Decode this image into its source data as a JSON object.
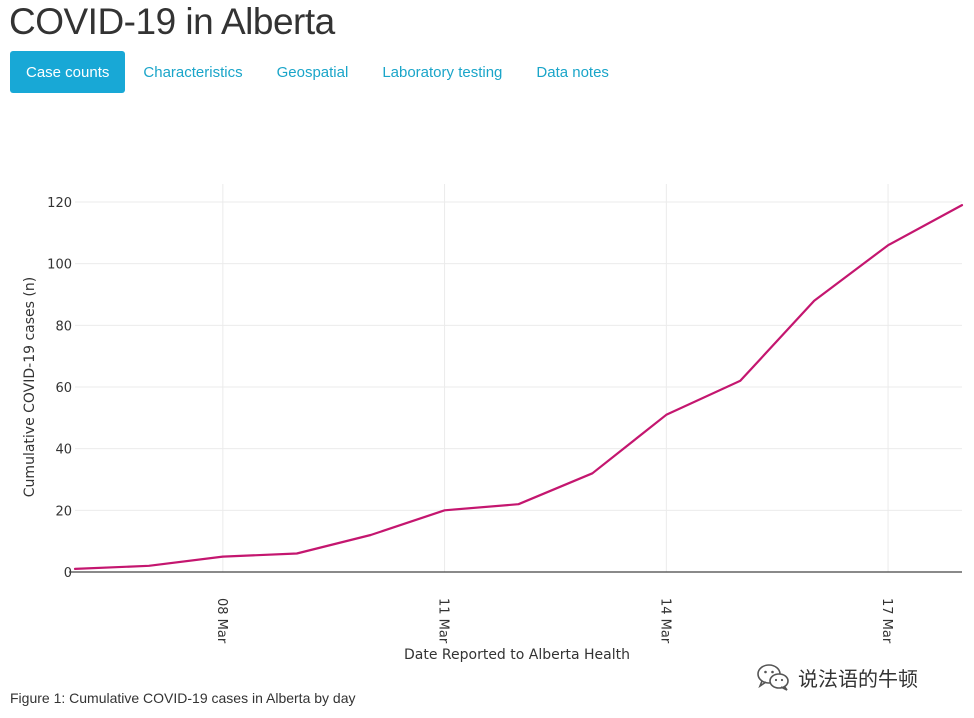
{
  "page": {
    "title": "COVID-19 in Alberta"
  },
  "tabs": [
    {
      "label": "Case counts",
      "active": true
    },
    {
      "label": "Characteristics",
      "active": false
    },
    {
      "label": "Geospatial",
      "active": false
    },
    {
      "label": "Laboratory testing",
      "active": false
    },
    {
      "label": "Data notes",
      "active": false
    }
  ],
  "colors": {
    "accent": "#18a8d6",
    "line": "#c4166f"
  },
  "caption": "Figure 1: Cumulative COVID-19 cases in Alberta by day",
  "watermark": {
    "text": "说法语的牛顿",
    "icon": "wechat-icon"
  },
  "chart_data": {
    "type": "line",
    "xlabel": "Date Reported to Alberta Health",
    "ylabel": "Cumulative COVID-19 cases (n)",
    "x": [
      "2020-03-06",
      "2020-03-07",
      "2020-03-08",
      "2020-03-09",
      "2020-03-10",
      "2020-03-11",
      "2020-03-12",
      "2020-03-13",
      "2020-03-14",
      "2020-03-15",
      "2020-03-16",
      "2020-03-17",
      "2020-03-18"
    ],
    "series": [
      {
        "values": [
          1,
          2,
          5,
          6,
          12,
          20,
          22,
          32,
          51,
          62,
          88,
          106,
          119
        ]
      }
    ],
    "ylim": [
      0,
      120
    ],
    "xlim": [
      "2020-03-06",
      "2020-03-18"
    ],
    "yticks": [
      0,
      20,
      40,
      60,
      80,
      100,
      120
    ],
    "xticks": [
      {
        "date": "2020-03-08",
        "label": "08 Mar"
      },
      {
        "date": "2020-03-11",
        "label": "11 Mar"
      },
      {
        "date": "2020-03-14",
        "label": "14 Mar"
      },
      {
        "date": "2020-03-17",
        "label": "17 Mar"
      }
    ],
    "grid": true,
    "legend": "none"
  }
}
